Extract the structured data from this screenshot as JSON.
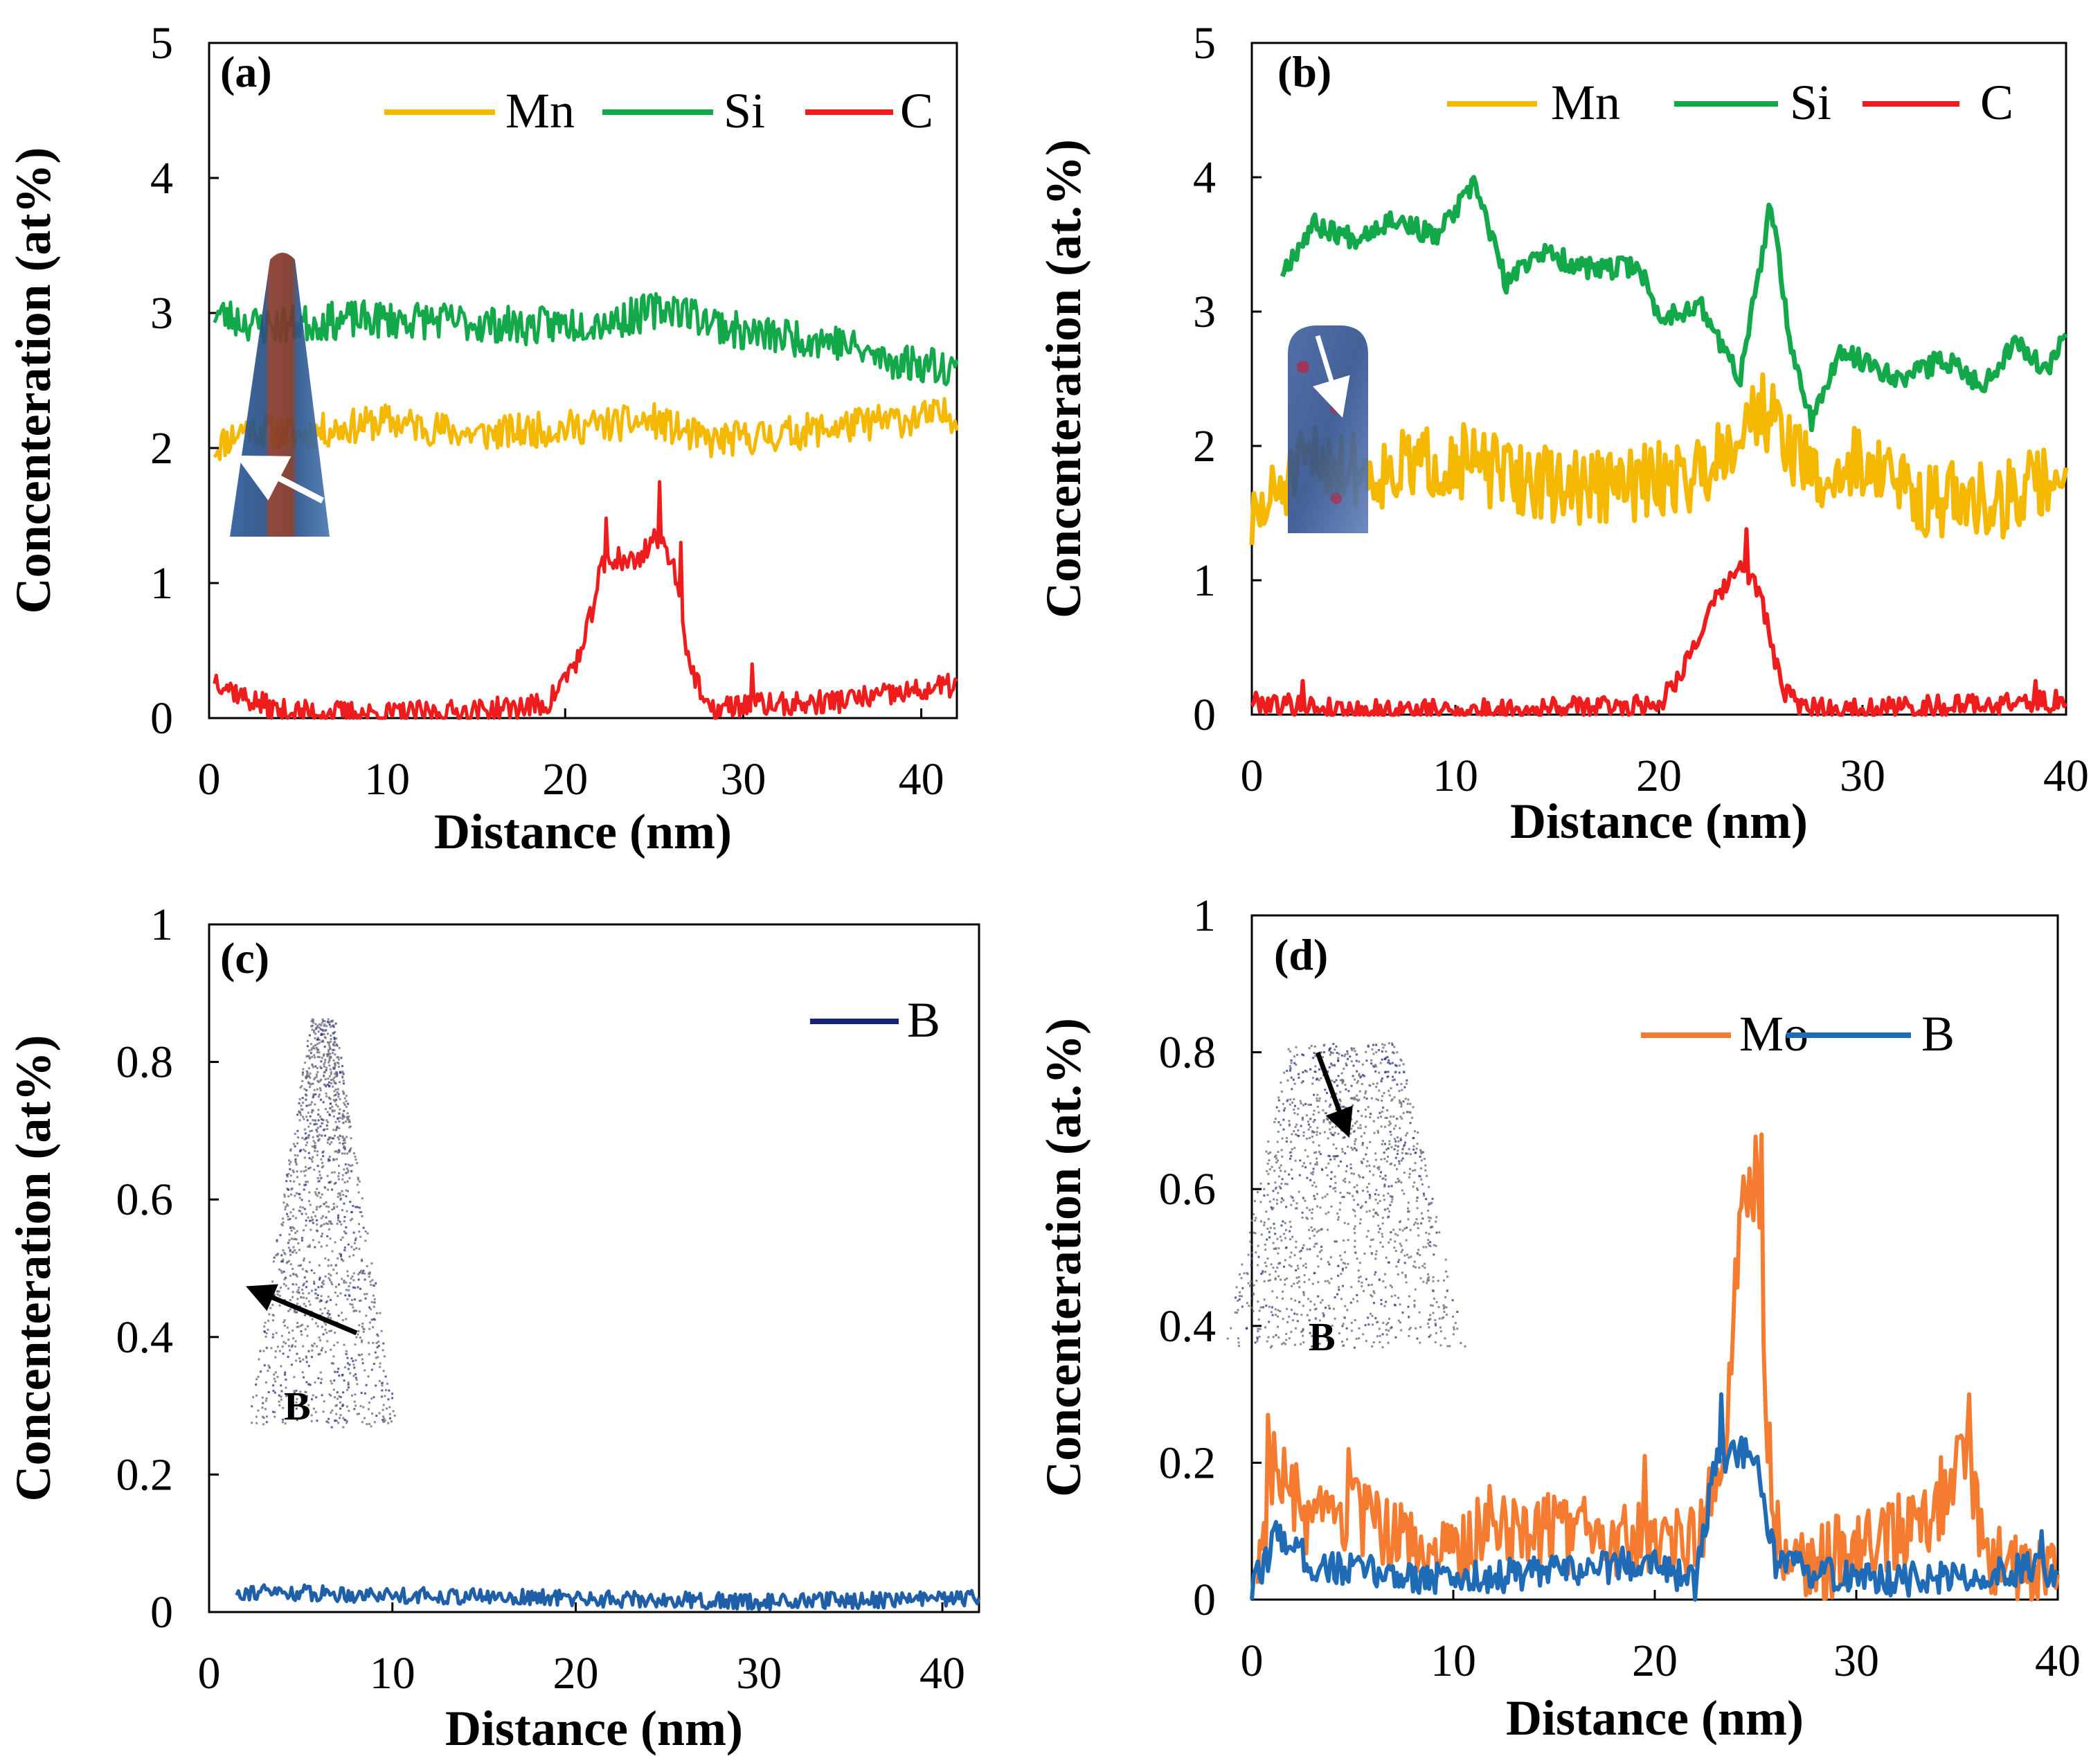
{
  "chart_data": [
    {
      "id": "a",
      "type": "line",
      "panel_label": "(a)",
      "xlabel": "Distance (nm)",
      "ylabel": "Concenteration (at%)",
      "xlim": [
        0,
        42
      ],
      "ylim": [
        0,
        5
      ],
      "xticks": [
        0,
        10,
        20,
        30,
        40
      ],
      "yticks": [
        0,
        1,
        2,
        3,
        4,
        5
      ],
      "ytick_labels": [
        "0",
        "1",
        "2",
        "3",
        "4",
        "5"
      ],
      "legend_position": "top-right",
      "inset": "atom-probe reconstruction with arrow",
      "series": [
        {
          "name": "Mn",
          "color": "#f5b800",
          "width": 5,
          "anchors": [
            [
              0.3,
              2.0
            ],
            [
              2,
              2.15
            ],
            [
              5,
              2.1
            ],
            [
              10,
              2.2
            ],
            [
              15,
              2.1
            ],
            [
              20,
              2.15
            ],
            [
              25,
              2.2
            ],
            [
              28,
              2.05
            ],
            [
              32,
              2.1
            ],
            [
              38,
              2.2
            ],
            [
              42,
              2.25
            ]
          ],
          "noise": 0.13,
          "seed": 11
        },
        {
          "name": "Si",
          "color": "#13a84a",
          "width": 5,
          "anchors": [
            [
              0.3,
              3.0
            ],
            [
              3,
              2.9
            ],
            [
              8,
              2.95
            ],
            [
              12,
              2.95
            ],
            [
              18,
              2.9
            ],
            [
              23,
              2.95
            ],
            [
              26,
              3.05
            ],
            [
              30,
              2.85
            ],
            [
              35,
              2.8
            ],
            [
              38,
              2.65
            ],
            [
              42,
              2.6
            ]
          ],
          "noise": 0.14,
          "seed": 23
        },
        {
          "name": "C",
          "color": "#ee1c1c",
          "width": 5,
          "anchors": [
            [
              0.3,
              0.3
            ],
            [
              2,
              0.15
            ],
            [
              4,
              0.05
            ],
            [
              10,
              0.03
            ],
            [
              15,
              0.05
            ],
            [
              19,
              0.1
            ],
            [
              20,
              0.3
            ],
            [
              21,
              0.5
            ],
            [
              22,
              1.1
            ],
            [
              23,
              1.2
            ],
            [
              24,
              1.15
            ],
            [
              25,
              1.35
            ],
            [
              26,
              1.2
            ],
            [
              27,
              0.4
            ],
            [
              28,
              0.05
            ],
            [
              30,
              0.1
            ],
            [
              33,
              0.1
            ],
            [
              37,
              0.15
            ],
            [
              40,
              0.2
            ],
            [
              42,
              0.25
            ]
          ],
          "noise": 0.09,
          "seed": 37,
          "peaks": [
            [
              22.3,
              1.48
            ],
            [
              23.2,
              1.1
            ],
            [
              25.3,
              1.75
            ],
            [
              26.5,
              1.3
            ],
            [
              30.5,
              0.4
            ]
          ]
        }
      ]
    },
    {
      "id": "b",
      "type": "line",
      "panel_label": "(b)",
      "xlabel": "Distance (nm)",
      "ylabel": "Concenteration (at.%)",
      "xlim": [
        0,
        40
      ],
      "ylim": [
        0,
        5
      ],
      "xticks": [
        0,
        10,
        20,
        30,
        40
      ],
      "yticks": [
        0,
        1,
        2,
        3,
        4,
        5
      ],
      "ytick_labels": [
        "0",
        "1",
        "2",
        "3",
        "4",
        "5"
      ],
      "legend_position": "top-right",
      "inset": "atom-probe reconstruction with arrow",
      "series": [
        {
          "name": "Mn",
          "color": "#f5b800",
          "width": 7,
          "anchors": [
            [
              0,
              1.4
            ],
            [
              1.5,
              1.7
            ],
            [
              3,
              1.9
            ],
            [
              6,
              1.8
            ],
            [
              10,
              1.9
            ],
            [
              12,
              1.8
            ],
            [
              15,
              1.7
            ],
            [
              18,
              1.7
            ],
            [
              22,
              1.8
            ],
            [
              25,
              2.3
            ],
            [
              28,
              1.7
            ],
            [
              30,
              1.9
            ],
            [
              33,
              1.6
            ],
            [
              37,
              1.6
            ],
            [
              40,
              1.8
            ]
          ],
          "noise": 0.28,
          "seed": 51
        },
        {
          "name": "Si",
          "color": "#13a84a",
          "width": 7,
          "anchors": [
            [
              1.5,
              3.3
            ],
            [
              3,
              3.65
            ],
            [
              5,
              3.55
            ],
            [
              7,
              3.7
            ],
            [
              9,
              3.55
            ],
            [
              11,
              3.95
            ],
            [
              12.5,
              3.2
            ],
            [
              14,
              3.45
            ],
            [
              17,
              3.3
            ],
            [
              19,
              3.35
            ],
            [
              20,
              2.95
            ],
            [
              22,
              3.05
            ],
            [
              24,
              2.5
            ],
            [
              25.5,
              3.8
            ],
            [
              26.5,
              2.7
            ],
            [
              27.5,
              2.2
            ],
            [
              29,
              2.7
            ],
            [
              32,
              2.5
            ],
            [
              34,
              2.65
            ],
            [
              36,
              2.45
            ],
            [
              37.5,
              2.8
            ],
            [
              39,
              2.55
            ],
            [
              40,
              2.9
            ]
          ],
          "noise": 0.08,
          "seed": 67
        },
        {
          "name": "C",
          "color": "#ee1c1c",
          "width": 6,
          "anchors": [
            [
              0,
              0.1
            ],
            [
              5,
              0.03
            ],
            [
              10,
              0.03
            ],
            [
              15,
              0.05
            ],
            [
              20,
              0.08
            ],
            [
              21,
              0.3
            ],
            [
              22,
              0.6
            ],
            [
              23,
              0.9
            ],
            [
              24,
              1.1
            ],
            [
              25,
              0.9
            ],
            [
              26,
              0.2
            ],
            [
              27,
              0.05
            ],
            [
              32,
              0.05
            ],
            [
              36,
              0.08
            ],
            [
              40,
              0.1
            ]
          ],
          "noise": 0.08,
          "seed": 79,
          "peaks": [
            [
              24.3,
              1.38
            ],
            [
              2.5,
              0.25
            ],
            [
              38.5,
              0.25
            ]
          ]
        }
      ]
    },
    {
      "id": "c",
      "type": "line",
      "panel_label": "(c)",
      "xlabel": "Distance (nm)",
      "ylabel": "Concenteration (at%)",
      "xlim": [
        0,
        42
      ],
      "ylim": [
        0,
        1
      ],
      "xticks": [
        0,
        10,
        20,
        30,
        40
      ],
      "yticks": [
        0,
        0.2,
        0.4,
        0.6,
        0.8,
        1
      ],
      "ytick_labels": [
        "0",
        "0.2",
        "0.4",
        "0.6",
        "0.8",
        "1"
      ],
      "legend_position": "top-right",
      "inset": "B atom map with arrow",
      "inset_label": "B",
      "series": [
        {
          "name": "B",
          "color": "#1f5fa8",
          "legend_color": "#14237a",
          "width": 5,
          "anchors": [
            [
              1.5,
              0.03
            ],
            [
              10,
              0.025
            ],
            [
              20,
              0.02
            ],
            [
              30,
              0.015
            ],
            [
              42,
              0.02
            ]
          ],
          "noise": 0.012,
          "seed": 91
        }
      ]
    },
    {
      "id": "d",
      "type": "line",
      "panel_label": "(d)",
      "xlabel": "Distance (nm)",
      "ylabel": "Concenteration (at.%)",
      "xlim": [
        0,
        40
      ],
      "ylim": [
        0,
        1
      ],
      "xticks": [
        0,
        10,
        20,
        30,
        40
      ],
      "yticks": [
        0,
        0.2,
        0.4,
        0.6,
        0.8,
        1
      ],
      "ytick_labels": [
        "0",
        "0.2",
        "0.4",
        "0.6",
        "0.8",
        "1"
      ],
      "legend_position": "top-right",
      "inset": "B atom map with arrow",
      "inset_label": "B",
      "series": [
        {
          "name": "Mo",
          "color": "#f47b30",
          "width": 6,
          "anchors": [
            [
              0.3,
              0.05
            ],
            [
              1,
              0.2
            ],
            [
              3,
              0.1
            ],
            [
              5,
              0.12
            ],
            [
              8,
              0.08
            ],
            [
              10,
              0.06
            ],
            [
              12,
              0.12
            ],
            [
              15,
              0.1
            ],
            [
              18,
              0.08
            ],
            [
              20,
              0.1
            ],
            [
              22,
              0.08
            ],
            [
              23.5,
              0.2
            ],
            [
              24.2,
              0.55
            ],
            [
              25,
              0.62
            ],
            [
              25.5,
              0.3
            ],
            [
              26,
              0.1
            ],
            [
              28,
              0.05
            ],
            [
              30,
              0.08
            ],
            [
              33,
              0.1
            ],
            [
              35.5,
              0.2
            ],
            [
              36.5,
              0.05
            ],
            [
              40,
              0.04
            ]
          ],
          "noise": 0.06,
          "seed": 103,
          "peaks": [
            [
              0.8,
              0.27
            ],
            [
              4.8,
              0.22
            ],
            [
              19.5,
              0.21
            ],
            [
              24.5,
              0.59
            ],
            [
              25.3,
              0.68
            ],
            [
              35.6,
              0.3
            ]
          ]
        },
        {
          "name": "B",
          "color": "#1f6bb5",
          "width": 6,
          "anchors": [
            [
              0,
              0.01
            ],
            [
              1.3,
              0.1
            ],
            [
              3,
              0.05
            ],
            [
              6,
              0.04
            ],
            [
              10,
              0.03
            ],
            [
              15,
              0.04
            ],
            [
              18,
              0.05
            ],
            [
              20,
              0.06
            ],
            [
              22,
              0.02
            ],
            [
              23,
              0.2
            ],
            [
              24,
              0.22
            ],
            [
              25,
              0.2
            ],
            [
              26,
              0.05
            ],
            [
              30,
              0.03
            ],
            [
              35,
              0.03
            ],
            [
              39,
              0.05
            ],
            [
              40,
              0.04
            ]
          ],
          "noise": 0.025,
          "seed": 117,
          "peaks": [
            [
              23.3,
              0.3
            ],
            [
              39.2,
              0.1
            ]
          ]
        }
      ]
    }
  ]
}
